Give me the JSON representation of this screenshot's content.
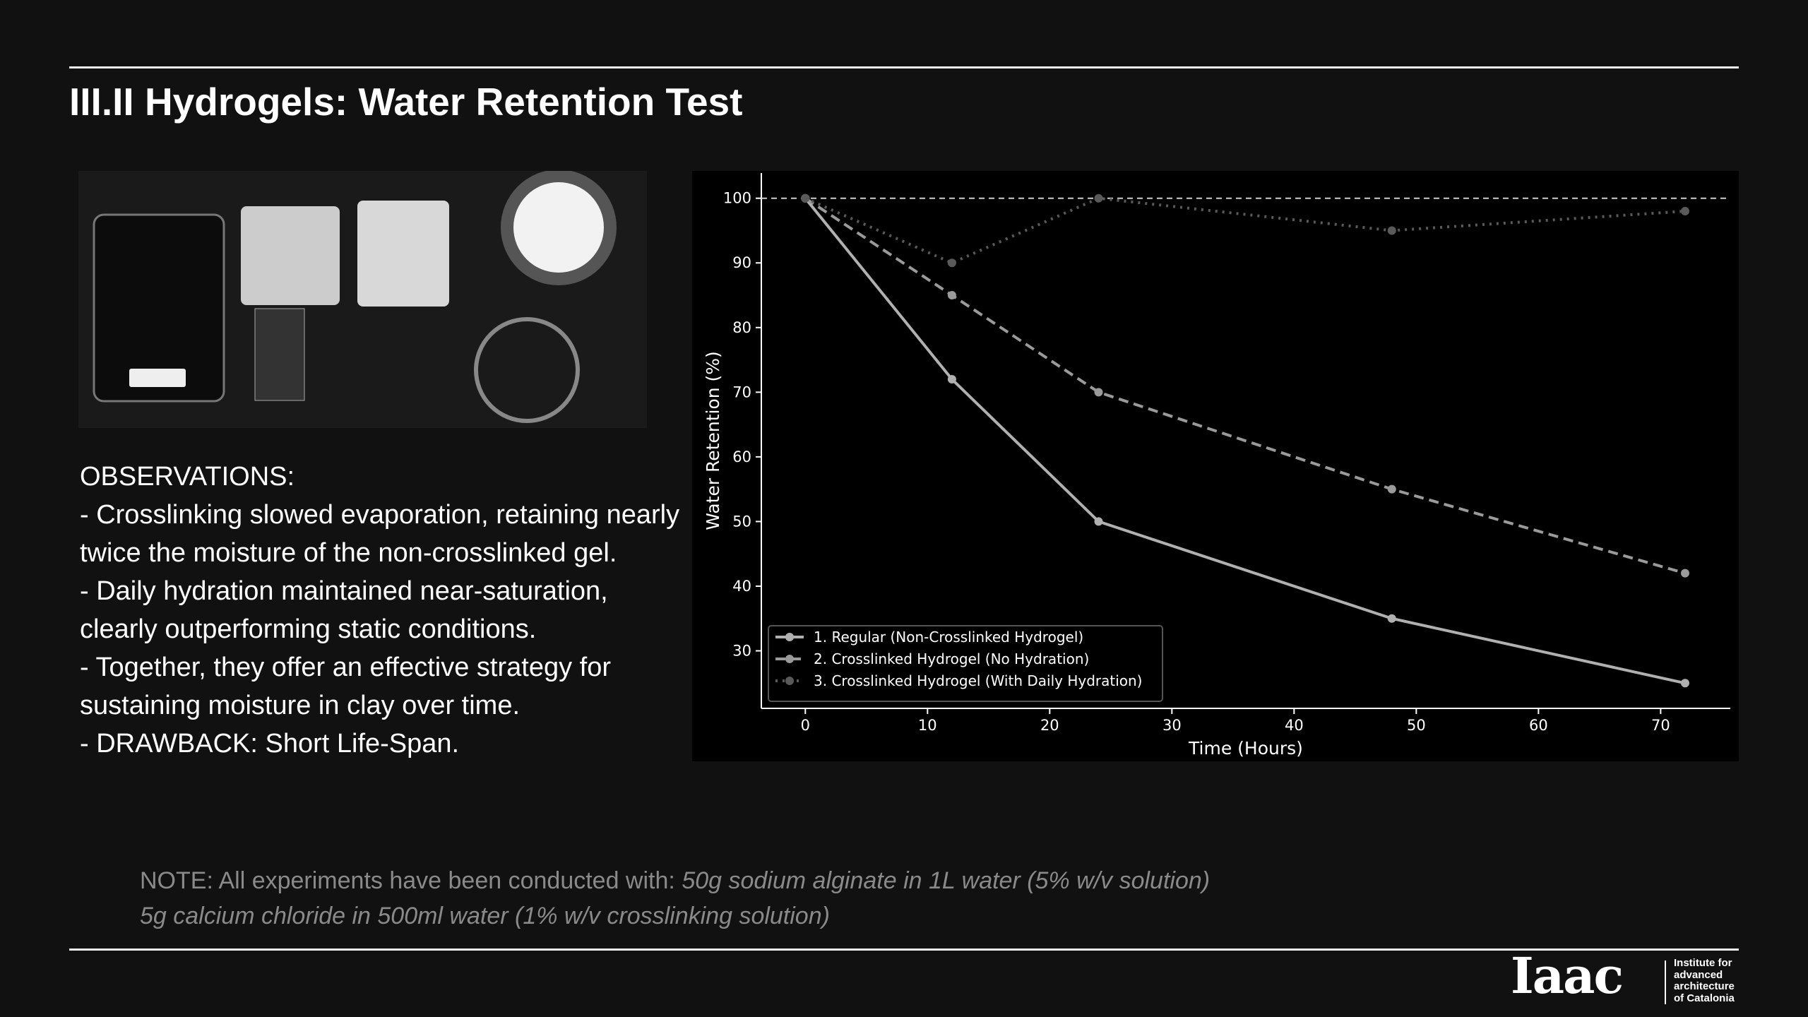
{
  "header": {
    "title": "III.II Hydrogels: Water Retention Test"
  },
  "observations": {
    "heading": "OBSERVATIONS:",
    "items": [
      "- Crosslinking slowed evaporation, retaining nearly twice the moisture of the non-crosslinked gel.",
      "- Daily hydration maintained near-saturation, clearly outperforming static conditions.",
      "- Together, they offer an effective strategy for sustaining moisture in clay over time.",
      "- DRAWBACK: Short Life-Span."
    ]
  },
  "note": {
    "label": "NOTE: All experiments have been conducted with:",
    "line1": "50g sodium alginate in 1L water (5% w/v solution)",
    "line2": "5g calcium chloride in 500ml water (1% w/v crosslinking solution)"
  },
  "logo": {
    "mark": "Iaac",
    "lines": [
      "Institute for",
      "advanced",
      "architecture",
      "of Catalonia"
    ]
  },
  "chart_data": {
    "type": "line",
    "x_label": "Time (Hours)",
    "y_label": "Water Retention (%)",
    "x": [
      0,
      12,
      24,
      48,
      72
    ],
    "series": [
      {
        "name": "1. Regular (Non-Crosslinked Hydrogel)",
        "color": "#b0b0b0",
        "style": "solid",
        "values": [
          100,
          72,
          50,
          35,
          25
        ]
      },
      {
        "name": "2. Crosslinked Hydrogel (No Hydration)",
        "color": "#9a9a9a",
        "style": "dashed",
        "values": [
          100,
          85,
          70,
          55,
          42
        ]
      },
      {
        "name": "3. Crosslinked Hydrogel (With Daily Hydration)",
        "color": "#5a5a5a",
        "style": "dotted",
        "values": [
          100,
          90,
          100,
          95,
          98
        ]
      }
    ],
    "reference_y": 100,
    "xlim": [
      -3.6,
      75.7
    ],
    "ylim": [
      21.1,
      103.9
    ],
    "xticks": [
      0,
      10,
      20,
      30,
      40,
      50,
      60,
      70
    ],
    "yticks": [
      30,
      40,
      50,
      60,
      70,
      80,
      90,
      100
    ],
    "legend": "lower-left"
  }
}
